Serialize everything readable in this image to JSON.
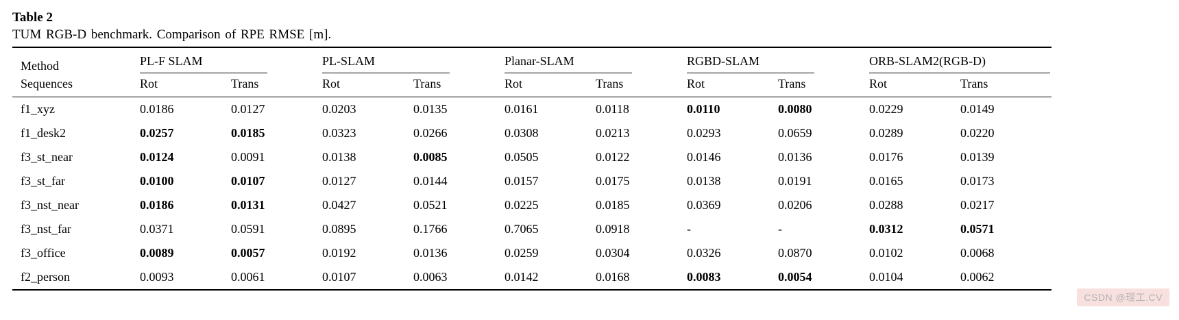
{
  "caption": {
    "label": "Table 2",
    "description": "TUM RGB-D benchmark. Comparison of RPE RMSE [m]."
  },
  "table": {
    "method_header": "Method",
    "sequences_header": "Sequences",
    "groups": [
      {
        "name": "PL-F SLAM"
      },
      {
        "name": "PL-SLAM"
      },
      {
        "name": "Planar-SLAM"
      },
      {
        "name": "RGBD-SLAM"
      },
      {
        "name": "ORB-SLAM2(RGB-D)"
      }
    ],
    "subheaders": {
      "rot": "Rot",
      "trans": "Trans"
    },
    "rows": [
      {
        "seq": "f1_xyz",
        "vals": [
          "0.0186",
          "0.0127",
          "0.0203",
          "0.0135",
          "0.0161",
          "0.0118",
          "0.0110",
          "0.0080",
          "0.0229",
          "0.0149"
        ]
      },
      {
        "seq": "f1_desk2",
        "vals": [
          "0.0257",
          "0.0185",
          "0.0323",
          "0.0266",
          "0.0308",
          "0.0213",
          "0.0293",
          "0.0659",
          "0.0289",
          "0.0220"
        ]
      },
      {
        "seq": "f3_st_near",
        "vals": [
          "0.0124",
          "0.0091",
          "0.0138",
          "0.0085",
          "0.0505",
          "0.0122",
          "0.0146",
          "0.0136",
          "0.0176",
          "0.0139"
        ]
      },
      {
        "seq": "f3_st_far",
        "vals": [
          "0.0100",
          "0.0107",
          "0.0127",
          "0.0144",
          "0.0157",
          "0.0175",
          "0.0138",
          "0.0191",
          "0.0165",
          "0.0173"
        ]
      },
      {
        "seq": "f3_nst_near",
        "vals": [
          "0.0186",
          "0.0131",
          "0.0427",
          "0.0521",
          "0.0225",
          "0.0185",
          "0.0369",
          "0.0206",
          "0.0288",
          "0.0217"
        ]
      },
      {
        "seq": "f3_nst_far",
        "vals": [
          "0.0371",
          "0.0591",
          "0.0895",
          "0.1766",
          "0.7065",
          "0.0918",
          "-",
          "-",
          "0.0312",
          "0.0571"
        ]
      },
      {
        "seq": "f3_office",
        "vals": [
          "0.0089",
          "0.0057",
          "0.0192",
          "0.0136",
          "0.0259",
          "0.0304",
          "0.0326",
          "0.0870",
          "0.0102",
          "0.0068"
        ]
      },
      {
        "seq": "f2_person",
        "vals": [
          "0.0093",
          "0.0061",
          "0.0107",
          "0.0063",
          "0.0142",
          "0.0168",
          "0.0083",
          "0.0054",
          "0.0104",
          "0.0062"
        ]
      }
    ]
  },
  "watermark": "CSDN @理工.CV",
  "colors": {
    "rule": "#000000",
    "watermark_bg": "#f8e0df",
    "watermark_text": "#b3b3b3"
  }
}
